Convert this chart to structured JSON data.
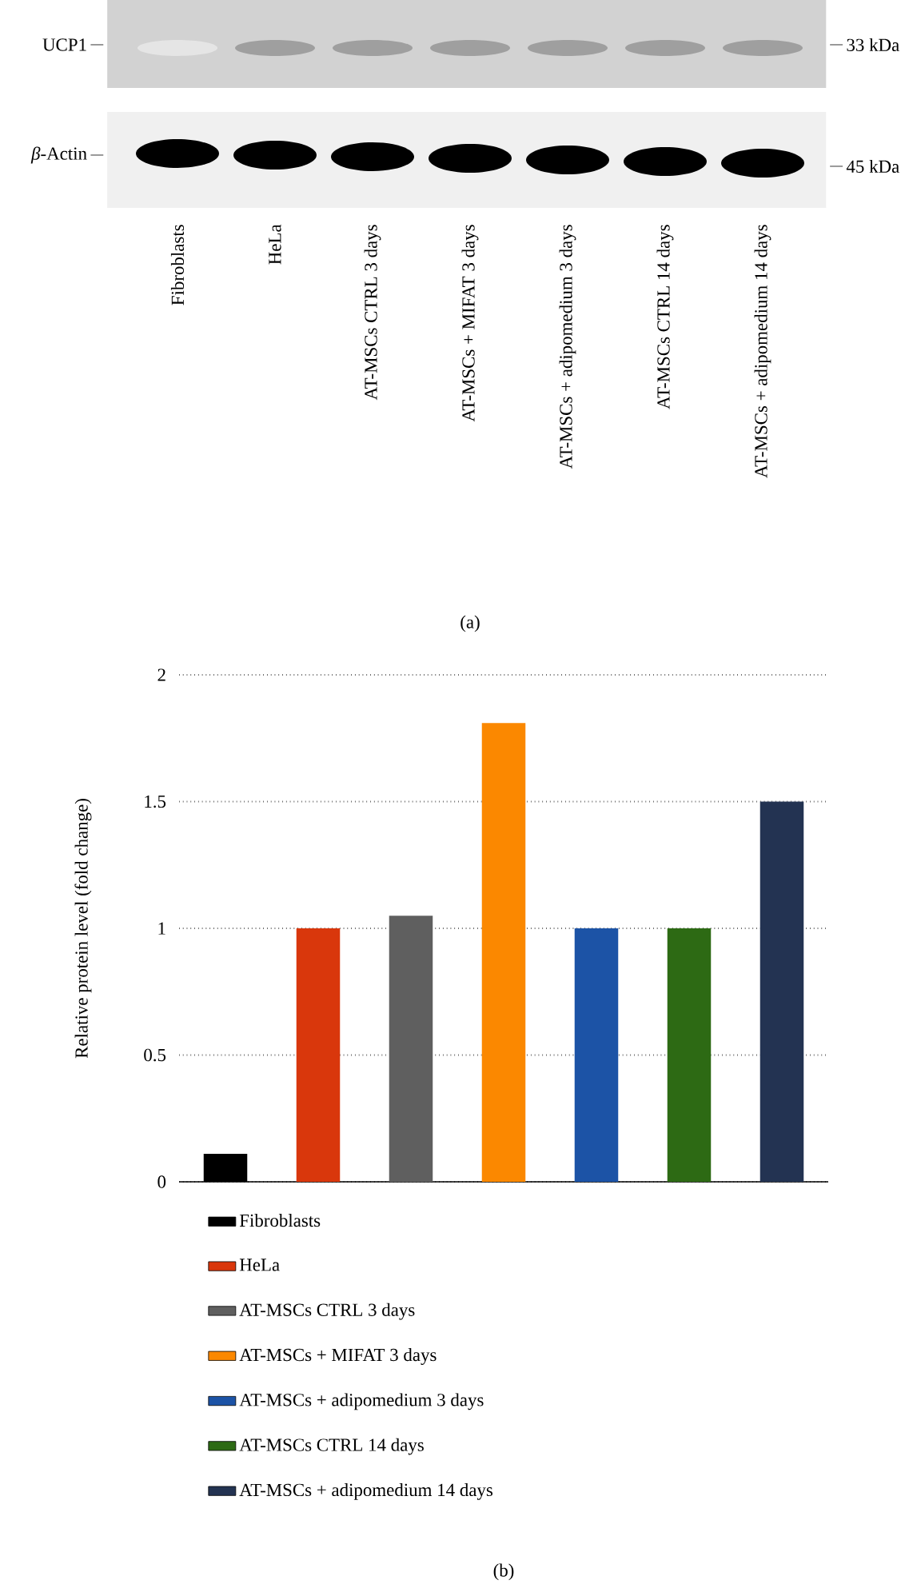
{
  "chart_data": [
    {
      "type": "other",
      "categories": [
        "Fibroblasts",
        "HeLa",
        "AT-MSCs CTRL 3 days",
        "AT-MSCs + MIFAT 3 days",
        "AT-MSCs + adipomedium 3 days",
        "AT-MSCs CTRL 14 days",
        "AT-MSCs + adipomedium 14 days"
      ],
      "annotations": [
        "UCP1",
        "33 kDa",
        "*β*-Actin",
        "45 kDa",
        "(a)"
      ]
    },
    {
      "type": "bar",
      "categories": [
        null,
        null,
        null,
        null,
        null,
        null,
        null
      ],
      "series": [
        {
          "name": "Fibroblasts",
          "color": "#000000",
          "values": [
            0.11,
            null,
            null,
            null,
            null,
            null,
            null
          ]
        },
        {
          "name": "HeLa",
          "color": "#d9370c",
          "values": [
            null,
            1.0,
            null,
            null,
            null,
            null,
            null
          ]
        },
        {
          "name": "AT-MSCs CTRL 3 days",
          "color": "#5f5f5f",
          "values": [
            null,
            null,
            1.05,
            null,
            null,
            null,
            null
          ]
        },
        {
          "name": "AT-MSCs + MIFAT 3 days",
          "color": "#fb8800",
          "values": [
            null,
            null,
            null,
            1.81,
            null,
            null,
            null
          ]
        },
        {
          "name": "AT-MSCs + adipomedium 3 days",
          "color": "#1c53a6",
          "values": [
            null,
            null,
            null,
            null,
            1.0,
            null,
            null
          ]
        },
        {
          "name": "AT-MSCs CTRL 14 days",
          "color": "#2d6a14",
          "values": [
            null,
            null,
            null,
            null,
            null,
            1.0,
            null
          ]
        },
        {
          "name": "AT-MSCs + adipomedium 14 days",
          "color": "#233352",
          "values": [
            null,
            null,
            null,
            null,
            null,
            null,
            1.5
          ]
        }
      ],
      "ylabel": "Relative protein level (fold change)",
      "ylim": [
        0,
        2
      ],
      "yticks": [
        0,
        0.5,
        1,
        1.5,
        2
      ],
      "grid": "y",
      "legend": "bottom",
      "tick_labels": "y",
      "annotations": [
        "(b)"
      ]
    }
  ]
}
